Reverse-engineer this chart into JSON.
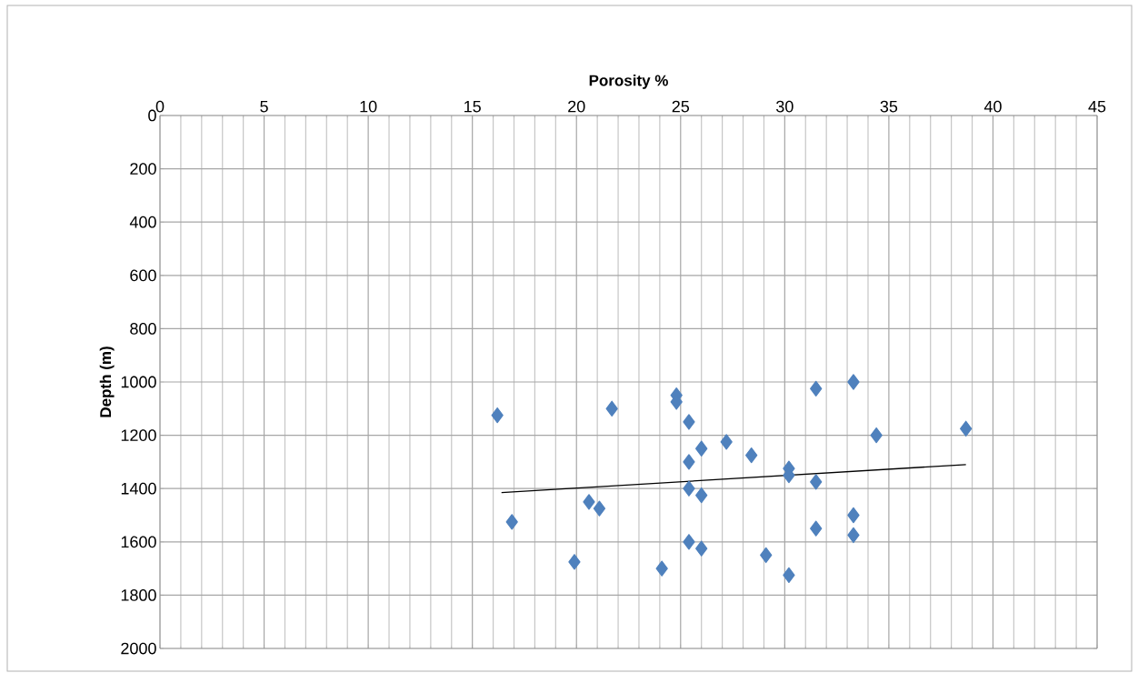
{
  "chart_data": {
    "type": "scatter",
    "xlabel": "Porosity %",
    "ylabel": "Depth (m)",
    "xlim": [
      0,
      45
    ],
    "ylim": [
      2000,
      0
    ],
    "xticks": [
      0,
      5,
      10,
      15,
      20,
      25,
      30,
      35,
      40,
      45
    ],
    "yticks": [
      0,
      200,
      400,
      600,
      800,
      1000,
      1200,
      1400,
      1600,
      1800,
      2000
    ],
    "grid": true,
    "series": [
      {
        "marker": "diamond",
        "color": "#4f81bd",
        "x": [
          33.3,
          31.5,
          24.8,
          24.8,
          16.2,
          21.7,
          25.4,
          38.7,
          34.4,
          26.0,
          27.2,
          28.4,
          25.4,
          30.2,
          30.2,
          31.5,
          25.4,
          26.0,
          20.6,
          21.1,
          33.3,
          16.9,
          31.5,
          33.3,
          25.4,
          26.0,
          29.1,
          19.9,
          24.1,
          30.2
        ],
        "values": [
          1000,
          1025,
          1050,
          1075,
          1125,
          1100,
          1150,
          1175,
          1200,
          1250,
          1225,
          1275,
          1300,
          1325,
          1350,
          1375,
          1400,
          1425,
          1450,
          1475,
          1500,
          1525,
          1550,
          1575,
          1600,
          1625,
          1650,
          1675,
          1700,
          1725
        ]
      },
      {
        "type": "line",
        "marker": "none",
        "color": "#000000",
        "x": [
          16.4,
          38.7
        ],
        "values": [
          1415,
          1310
        ]
      }
    ]
  }
}
